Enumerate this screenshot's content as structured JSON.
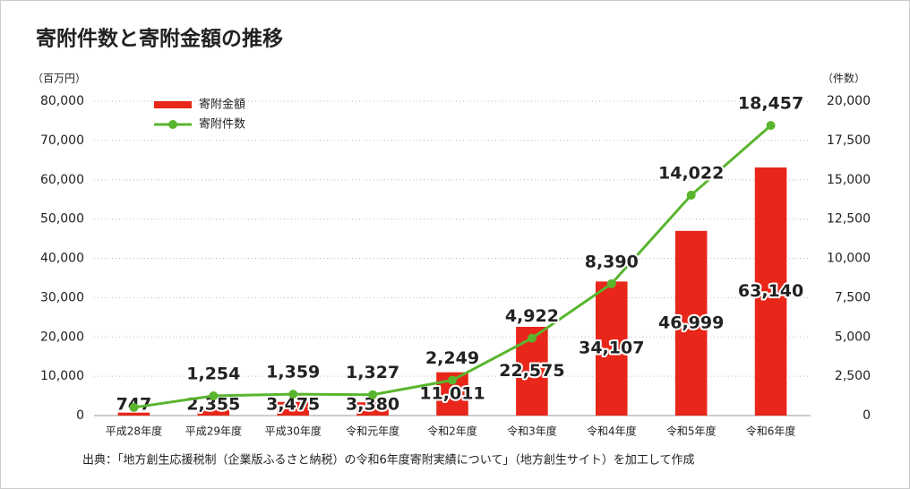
{
  "chart_data": {
    "type": "bar-line",
    "title": "寄附件数と寄附金額の推移",
    "y_label": "（百万円）",
    "y2_label": "（件数）",
    "source": "出典：「地方創生応援税制（企業版ふるさと納税）の令和6年度寄附実績について」（地方創生サイト）を加工して作成",
    "categories": [
      "平成28年度",
      "平成29年度",
      "平成30年度",
      "令和元年度",
      "令和2年度",
      "令和3年度",
      "令和4年度",
      "令和5年度",
      "令和6年度"
    ],
    "series": [
      {
        "name": "寄附金額",
        "type": "bar",
        "color": "#e8261a",
        "axis": "y",
        "values": [
          747,
          2355,
          3475,
          3380,
          11011,
          22575,
          34107,
          46999,
          63140
        ],
        "value_labels": [
          "747",
          "2,355",
          "3,475",
          "3,380",
          "11,011",
          "22,575",
          "34,107",
          "46,999",
          "63,140"
        ]
      },
      {
        "name": "寄附件数",
        "type": "line",
        "color": "#5ab52e",
        "axis": "y2",
        "values": [
          517,
          1254,
          1359,
          1327,
          2249,
          4922,
          8390,
          14022,
          18457
        ],
        "value_labels": [
          null,
          "1,254",
          "1,359",
          "1,327",
          "2,249",
          "4,922",
          "8,390",
          "14,022",
          "18,457"
        ]
      }
    ],
    "ylim": [
      0,
      80000
    ],
    "yticks": [
      0,
      {
        "value": 10000,
        "label": "10,000"
      },
      {
        "value": 20000,
        "label": "20,000"
      },
      {
        "value": 30000,
        "label": "30,000"
      },
      {
        "value": 40000,
        "label": "40,000"
      },
      {
        "value": 50000,
        "label": "50,000"
      },
      {
        "value": 60000,
        "label": "60,000"
      },
      {
        "value": 70000,
        "label": "70,000"
      },
      {
        "value": 80000,
        "label": "80,000"
      }
    ],
    "y2lim": [
      0,
      20000
    ],
    "y2ticks": [
      0,
      {
        "value": 2500,
        "label": "2,500"
      },
      {
        "value": 5000,
        "label": "5,000"
      },
      {
        "value": 7500,
        "label": "7,500"
      },
      {
        "value": 10000,
        "label": "10,000"
      },
      {
        "value": 12500,
        "label": "12,500"
      },
      {
        "value": 15000,
        "label": "15,000"
      },
      {
        "value": 17500,
        "label": "17,500"
      },
      {
        "value": 20000,
        "label": "20,000"
      }
    ],
    "grid": true,
    "legend": "upper left"
  }
}
